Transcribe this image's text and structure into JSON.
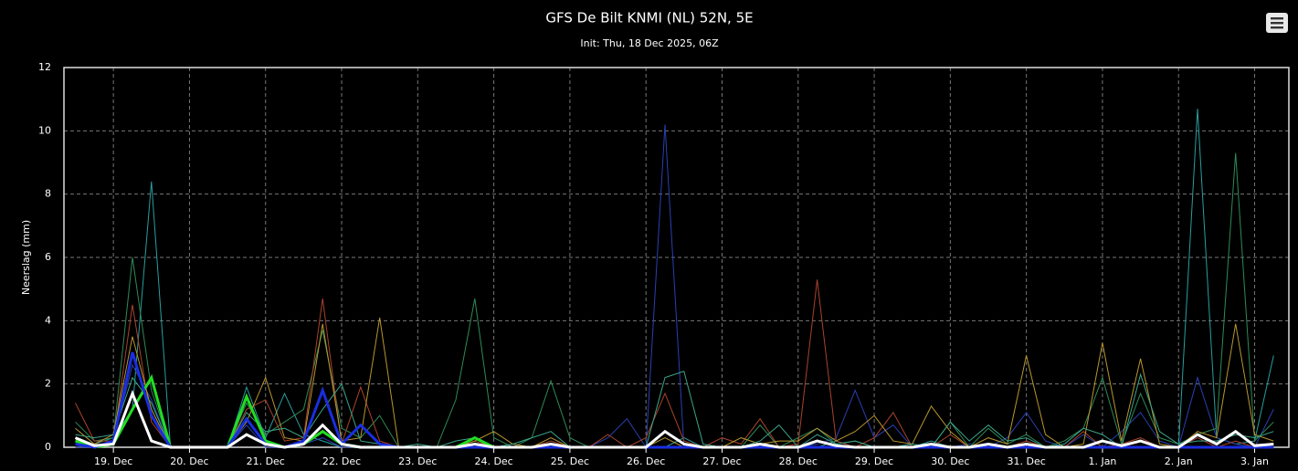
{
  "chart_data": {
    "type": "line",
    "title": "GFS De Bilt KNMI (NL) 52N, 5E",
    "subtitle": "Init: Thu, 18 Dec 2025, 06Z",
    "y_label": "Neerslag (mm)",
    "ylim": [
      0,
      12
    ],
    "yticks": [
      0,
      2,
      4,
      6,
      8,
      10,
      12
    ],
    "grid": true,
    "categories": [
      null,
      null,
      "19. Dec",
      null,
      null,
      null,
      "20. Dec",
      null,
      null,
      null,
      "21. Dec",
      null,
      null,
      null,
      "22. Dec",
      null,
      null,
      null,
      "23. Dec",
      null,
      null,
      null,
      "24. Dec",
      null,
      null,
      null,
      "25. Dec",
      null,
      null,
      null,
      "26. Dec",
      null,
      null,
      null,
      "27. Dec",
      null,
      null,
      null,
      "28. Dec",
      null,
      null,
      null,
      "29. Dec",
      null,
      null,
      null,
      "30. Dec",
      null,
      null,
      null,
      "31. Dec",
      null,
      null,
      null,
      "1. Jan",
      null,
      null,
      null,
      "2. Jan",
      null,
      null,
      null,
      "3. Jan",
      null
    ],
    "series": [
      {
        "color": "#2a9d9d",
        "line_width": 1,
        "values": [
          0.1,
          0.1,
          0.3,
          1.2,
          8.4,
          0,
          0,
          0,
          0,
          1.9,
          0.3,
          1.7,
          0.4,
          0.2,
          0,
          0,
          0,
          0,
          0,
          0,
          0,
          0,
          0,
          0,
          0,
          0,
          0,
          0,
          0,
          0,
          0,
          0,
          0.3,
          0,
          0,
          0,
          0,
          0,
          0,
          0,
          0.2,
          0,
          0,
          0,
          0,
          0.2,
          0,
          0,
          0,
          0,
          0,
          0,
          0,
          0,
          0,
          0,
          0,
          0,
          0,
          10.7,
          0.3,
          0.1,
          0.2,
          2.9
        ]
      },
      {
        "color": "#2a3fb0",
        "line_width": 1,
        "values": [
          0,
          0,
          0.2,
          2.6,
          1.5,
          0,
          0,
          0,
          0,
          0.7,
          0,
          0,
          0.1,
          0.3,
          0,
          0,
          0,
          0,
          0,
          0,
          0,
          0,
          0,
          0,
          0,
          0,
          0,
          0,
          0.3,
          0.9,
          0,
          10.2,
          0,
          0,
          0,
          0,
          0.1,
          0,
          0,
          0.1,
          0.3,
          1.8,
          0.3,
          0.7,
          0,
          0,
          0,
          0.1,
          0,
          0.3,
          1.1,
          0.2,
          0,
          0.4,
          0,
          0.5,
          1.1,
          0.2,
          0,
          2.2,
          0.3,
          0.1,
          0,
          1.2
        ]
      },
      {
        "color": "#2e8b57",
        "line_width": 1,
        "values": [
          0.8,
          0.2,
          0.3,
          6.0,
          1.8,
          0,
          0,
          0,
          0,
          1.4,
          0.4,
          0.8,
          1.2,
          3.7,
          0.6,
          0.3,
          1.0,
          0,
          0,
          0,
          1.5,
          4.7,
          0.3,
          0,
          0.3,
          2.1,
          0.3,
          0,
          0,
          0,
          0,
          0,
          0,
          0,
          0,
          0,
          0.7,
          0,
          0.3,
          0.6,
          0.1,
          0.2,
          0,
          0,
          0.1,
          0,
          0.8,
          0,
          0.6,
          0.1,
          0.4,
          0,
          0.2,
          0.6,
          2.2,
          0.1,
          1.7,
          0.3,
          0.1,
          0.4,
          0.6,
          9.3,
          0.2,
          0.8
        ]
      },
      {
        "color": "#a8432b",
        "line_width": 1,
        "values": [
          1.4,
          0.2,
          0.2,
          4.5,
          0.8,
          0,
          0,
          0,
          0,
          1.2,
          1.5,
          0.2,
          0.3,
          4.7,
          0.1,
          1.9,
          0.2,
          0,
          0,
          0,
          0,
          0.2,
          0,
          0,
          0,
          0.2,
          0,
          0,
          0.4,
          0,
          0.3,
          1.7,
          0.2,
          0,
          0.3,
          0.1,
          0.9,
          0,
          0.1,
          5.3,
          0.2,
          0,
          0.3,
          1.1,
          0,
          0,
          0.4,
          0,
          0,
          0,
          0.2,
          0,
          0,
          0.5,
          0,
          0.1,
          0.3,
          0,
          0,
          0.3,
          0,
          0.2,
          0,
          0.1
        ]
      },
      {
        "color": "#b8962e",
        "line_width": 1,
        "values": [
          0.6,
          0.1,
          0.4,
          3.5,
          1.2,
          0,
          0,
          0,
          0,
          0.8,
          2.2,
          0.3,
          0.2,
          3.9,
          0.2,
          0.3,
          4.1,
          0,
          0,
          0,
          0,
          0.2,
          0.5,
          0.1,
          0,
          0.3,
          0,
          0,
          0,
          0,
          0,
          0.3,
          0,
          0,
          0,
          0.3,
          0.1,
          0.2,
          0.2,
          0.6,
          0.2,
          0.5,
          1.0,
          0.2,
          0.1,
          1.3,
          0.5,
          0,
          0.3,
          0.1,
          2.9,
          0.4,
          0,
          0.1,
          3.3,
          0.2,
          2.8,
          0.1,
          0,
          0.5,
          0.3,
          3.9,
          0.4,
          0.2
        ]
      },
      {
        "color": "#3aa58a",
        "line_width": 1,
        "values": [
          0.4,
          0.3,
          0.4,
          2.2,
          1.4,
          0,
          0,
          0,
          0,
          1.1,
          0.5,
          0.6,
          0.3,
          1.2,
          2.0,
          0.2,
          0.1,
          0,
          0.1,
          0,
          0.2,
          0.3,
          0,
          0.1,
          0.3,
          0.5,
          0,
          0,
          0,
          0,
          0,
          2.2,
          2.4,
          0.1,
          0,
          0,
          0.2,
          0.7,
          0,
          0.4,
          0.1,
          0.2,
          0,
          0,
          0.1,
          0,
          0.8,
          0.2,
          0.7,
          0.2,
          0.3,
          0,
          0.1,
          0.6,
          0.4,
          0,
          2.3,
          0.5,
          0.1,
          0.2,
          0.2,
          0.4,
          0.3,
          0.5
        ]
      },
      {
        "color": "#22dd22",
        "line_width": 3,
        "values": [
          0.2,
          0,
          0.1,
          1.2,
          2.2,
          0,
          0,
          0,
          0,
          1.6,
          0.2,
          0,
          0.1,
          0.5,
          0.1,
          0,
          0,
          0,
          0,
          0,
          0,
          0.3,
          0,
          0,
          0,
          0,
          0,
          0,
          0,
          0,
          0,
          0,
          0,
          0,
          0,
          0,
          0,
          0,
          0,
          0,
          0,
          0,
          0,
          0,
          0,
          0,
          0,
          0,
          0,
          0,
          0,
          0,
          0,
          0,
          0,
          0,
          0,
          0,
          0,
          0,
          0,
          0,
          0,
          0
        ]
      },
      {
        "color": "#1a2ee0",
        "line_width": 3,
        "values": [
          0.1,
          0,
          0.2,
          3.0,
          1.0,
          0,
          0,
          0,
          0,
          0.9,
          0.1,
          0,
          0.2,
          1.8,
          0.1,
          0.7,
          0.1,
          0,
          0,
          0,
          0,
          0,
          0,
          0,
          0,
          0,
          0,
          0,
          0,
          0,
          0,
          0,
          0,
          0,
          0,
          0,
          0,
          0,
          0,
          0,
          0,
          0,
          0,
          0,
          0,
          0,
          0,
          0,
          0,
          0,
          0,
          0,
          0,
          0,
          0,
          0,
          0,
          0,
          0,
          0,
          0,
          0,
          0,
          0
        ]
      },
      {
        "color": "#ffffff",
        "line_width": 3,
        "values": [
          0.3,
          0.05,
          0.1,
          1.7,
          0.2,
          0,
          0,
          0,
          0,
          0.4,
          0.1,
          0,
          0.1,
          0.7,
          0.1,
          0,
          0,
          0,
          0,
          0,
          0,
          0.1,
          0,
          0,
          0,
          0.1,
          0,
          0,
          0,
          0,
          0,
          0.5,
          0.1,
          0,
          0,
          0,
          0.1,
          0,
          0,
          0.2,
          0.05,
          0,
          0,
          0,
          0,
          0.1,
          0,
          0,
          0.1,
          0,
          0.1,
          0,
          0,
          0,
          0.2,
          0.05,
          0.2,
          0,
          0,
          0.4,
          0.1,
          0.5,
          0.05,
          0.1
        ]
      }
    ]
  }
}
